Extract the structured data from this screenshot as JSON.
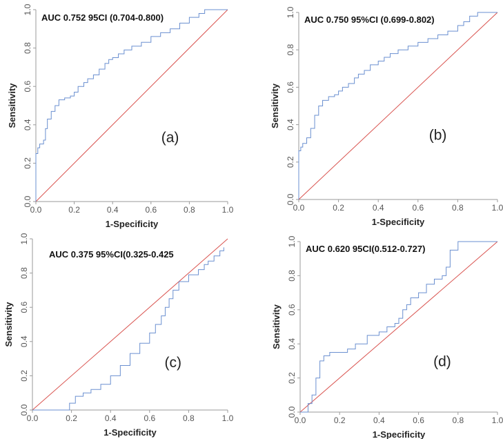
{
  "figure": {
    "description_hidden": ""
  },
  "chart_data": [
    {
      "type": "line",
      "panel_label": "(a)",
      "annotation": "AUC 0.752 95CI (0.704-0.800)",
      "xlabel": "1-Specificity",
      "ylabel": "Sensitivity",
      "xlim": [
        0,
        1
      ],
      "ylim": [
        0,
        1
      ],
      "xticks": [
        "0.0",
        "0.2",
        "0.4",
        "0.6",
        "0.8",
        "1.0"
      ],
      "yticks": [
        "0.0",
        "0.2",
        "0.4",
        "0.6",
        "0.8",
        "1.0"
      ],
      "colors": {
        "roc": "#6a8fd0",
        "reference": "#d9534f"
      },
      "series": [
        {
          "name": "ROC",
          "x": [
            0,
            0,
            0.01,
            0.02,
            0.04,
            0.05,
            0.06,
            0.08,
            0.1,
            0.12,
            0.15,
            0.18,
            0.2,
            0.22,
            0.25,
            0.27,
            0.3,
            0.33,
            0.36,
            0.38,
            0.4,
            0.43,
            0.46,
            0.5,
            0.55,
            0.6,
            0.65,
            0.7,
            0.75,
            0.8,
            0.85,
            0.88,
            0.9,
            0.95,
            1.0
          ],
          "y": [
            0,
            0.25,
            0.28,
            0.3,
            0.32,
            0.38,
            0.43,
            0.47,
            0.5,
            0.53,
            0.54,
            0.55,
            0.57,
            0.6,
            0.62,
            0.64,
            0.66,
            0.69,
            0.72,
            0.74,
            0.75,
            0.77,
            0.79,
            0.81,
            0.83,
            0.86,
            0.88,
            0.9,
            0.93,
            0.96,
            0.98,
            1.0,
            1.0,
            1.0,
            1.0
          ]
        },
        {
          "name": "Reference",
          "x": [
            0,
            1
          ],
          "y": [
            0,
            1
          ]
        }
      ]
    },
    {
      "type": "line",
      "panel_label": "(b)",
      "annotation": "AUC 0.750 95%CI (0.699-0.802)",
      "xlabel": "1-Specificity",
      "ylabel": "Sensitivity",
      "xlim": [
        0,
        1
      ],
      "ylim": [
        0,
        1
      ],
      "xticks": [
        "0.0",
        "0.2",
        "0.4",
        "0.6",
        "0.8",
        "1.0"
      ],
      "yticks": [
        "0.0",
        "0.2",
        "0.4",
        "0.6",
        "0.8",
        "1.0"
      ],
      "colors": {
        "roc": "#6a8fd0",
        "reference": "#d9534f"
      },
      "series": [
        {
          "name": "ROC",
          "x": [
            0,
            0,
            0.01,
            0.02,
            0.04,
            0.06,
            0.08,
            0.1,
            0.12,
            0.15,
            0.18,
            0.2,
            0.22,
            0.25,
            0.28,
            0.3,
            0.33,
            0.36,
            0.4,
            0.43,
            0.46,
            0.5,
            0.55,
            0.6,
            0.65,
            0.7,
            0.75,
            0.8,
            0.83,
            0.86,
            0.9,
            0.95,
            1.0
          ],
          "y": [
            0,
            0.26,
            0.28,
            0.3,
            0.33,
            0.38,
            0.45,
            0.5,
            0.53,
            0.55,
            0.56,
            0.58,
            0.6,
            0.62,
            0.65,
            0.67,
            0.69,
            0.72,
            0.74,
            0.76,
            0.78,
            0.8,
            0.82,
            0.84,
            0.86,
            0.88,
            0.9,
            0.93,
            0.95,
            0.98,
            1.0,
            1.0,
            1.0
          ]
        },
        {
          "name": "Reference",
          "x": [
            0,
            1
          ],
          "y": [
            0,
            1
          ]
        }
      ]
    },
    {
      "type": "line",
      "panel_label": "(c)",
      "annotation": "AUC 0.375 95%CI(0.325-0.425",
      "xlabel": "1-Specificity",
      "ylabel": "Sensitivity",
      "xlim": [
        0,
        1
      ],
      "ylim": [
        0,
        1
      ],
      "xticks": [
        "0.0",
        "0.2",
        "0.4",
        "0.6",
        "0.8",
        "1.0"
      ],
      "yticks": [
        "0.0",
        "0.2",
        "0.4",
        "0.6",
        "0.8",
        "1.0"
      ],
      "colors": {
        "roc": "#6a8fd0",
        "reference": "#d9534f"
      },
      "series": [
        {
          "name": "ROC",
          "x": [
            0,
            0.17,
            0.19,
            0.22,
            0.26,
            0.3,
            0.35,
            0.4,
            0.45,
            0.5,
            0.55,
            0.6,
            0.63,
            0.66,
            0.68,
            0.7,
            0.72,
            0.75,
            0.8,
            0.85,
            0.88,
            0.9,
            0.93,
            0.96,
            0.98
          ],
          "y": [
            0,
            0,
            0.04,
            0.08,
            0.1,
            0.12,
            0.15,
            0.2,
            0.26,
            0.33,
            0.39,
            0.45,
            0.5,
            0.55,
            0.6,
            0.65,
            0.7,
            0.75,
            0.79,
            0.82,
            0.85,
            0.87,
            0.9,
            0.93,
            0.95
          ]
        },
        {
          "name": "Reference",
          "x": [
            0,
            1
          ],
          "y": [
            0,
            1
          ]
        }
      ]
    },
    {
      "type": "line",
      "panel_label": "(d)",
      "annotation": "AUC 0.620 95CI(0.512-0.727)",
      "xlabel": "1-Specificity",
      "ylabel": "Sensitivity",
      "xlim": [
        0,
        1
      ],
      "ylim": [
        0,
        1
      ],
      "xticks": [
        "0.0",
        "0.2",
        "0.4",
        "0.6",
        "0.8",
        "1.0"
      ],
      "yticks": [
        "0.0",
        "0.2",
        "0.4",
        "0.6",
        "0.8",
        "1.0"
      ],
      "colors": {
        "roc": "#6a8fd0",
        "reference": "#d9534f"
      },
      "series": [
        {
          "name": "ROC",
          "x": [
            0,
            0.04,
            0.06,
            0.08,
            0.1,
            0.12,
            0.15,
            0.18,
            0.24,
            0.28,
            0.34,
            0.4,
            0.44,
            0.48,
            0.5,
            0.52,
            0.54,
            0.56,
            0.6,
            0.64,
            0.68,
            0.72,
            0.74,
            0.76,
            0.8,
            1.0
          ],
          "y": [
            0,
            0.05,
            0.1,
            0.2,
            0.3,
            0.33,
            0.35,
            0.35,
            0.37,
            0.4,
            0.45,
            0.47,
            0.5,
            0.52,
            0.55,
            0.6,
            0.63,
            0.67,
            0.7,
            0.75,
            0.78,
            0.8,
            0.85,
            0.95,
            1.0,
            1.0
          ]
        },
        {
          "name": "Reference",
          "x": [
            0,
            1
          ],
          "y": [
            0,
            1
          ]
        }
      ]
    }
  ]
}
